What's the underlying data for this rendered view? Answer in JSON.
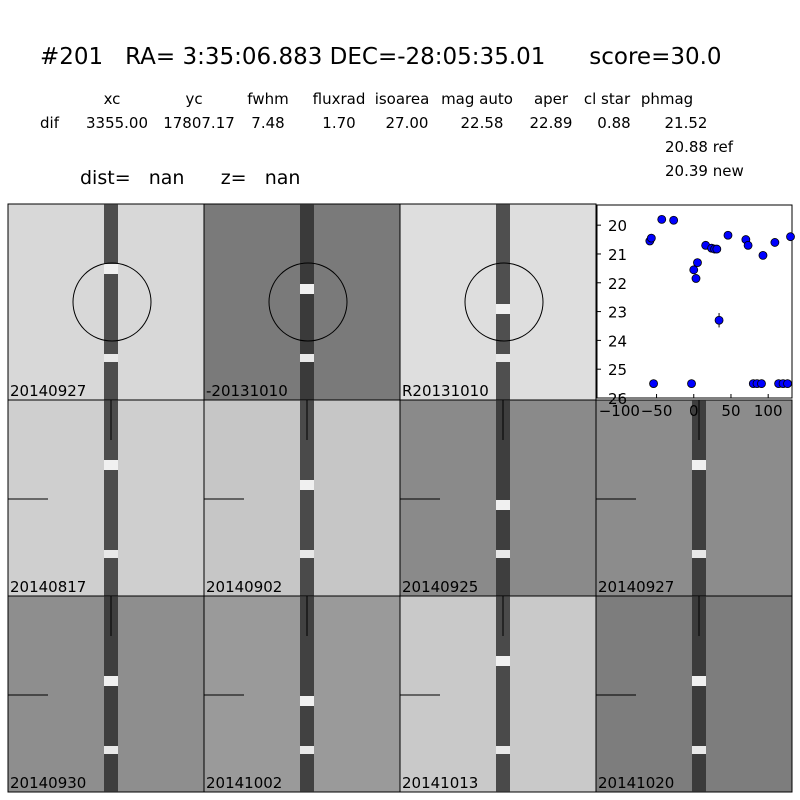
{
  "header": {
    "title": "#201   RA= 3:35:06.883 DEC=-28:05:35.01      score=30.0",
    "columns": [
      "xc",
      "yc",
      "fwhm",
      "fluxrad",
      "isoarea",
      "mag auto",
      "aper",
      "cl star",
      "phmag"
    ],
    "row_label": "dif",
    "row": [
      "3355.00",
      "17807.17",
      "7.48",
      "1.70",
      "27.00",
      "22.58",
      "22.89",
      "0.88",
      "21.52"
    ],
    "ref": "20.88 ref",
    "new": "20.39 new",
    "dist": "dist=   nan      z=   nan"
  },
  "panels": [
    {
      "label": "20140927"
    },
    {
      "label": "-20131010"
    },
    {
      "label": "R20131010"
    },
    {
      "label": "20140817"
    },
    {
      "label": "20140902"
    },
    {
      "label": "20140925"
    },
    {
      "label": "20140927",
      "color": "#ff0000"
    },
    {
      "label": "20140930"
    },
    {
      "label": "20141002"
    },
    {
      "label": "20141013"
    },
    {
      "label": "20141020"
    }
  ],
  "chart_data": {
    "type": "scatter",
    "color": "#0000ff",
    "x": [
      -59,
      -57,
      -43,
      -27,
      16,
      24,
      28,
      31,
      46,
      70,
      73,
      93,
      109,
      130,
      0,
      5,
      3,
      34,
      -54,
      -3,
      80,
      85,
      91,
      114,
      120,
      126
    ],
    "values": [
      20.55,
      20.45,
      19.8,
      19.83,
      20.7,
      20.8,
      20.83,
      20.83,
      20.35,
      20.5,
      20.7,
      21.05,
      20.6,
      20.4,
      21.55,
      21.3,
      21.85,
      23.3,
      25.5,
      25.5,
      25.5,
      25.5,
      25.5,
      25.5,
      25.5,
      25.5
    ],
    "errors": [
      null,
      null,
      null,
      null,
      null,
      null,
      null,
      null,
      null,
      null,
      null,
      null,
      null,
      null,
      null,
      null,
      null,
      0.25,
      null,
      null,
      null,
      null,
      null,
      null,
      null,
      null
    ],
    "xlim": [
      -130,
      132
    ],
    "ylim": [
      26,
      19.3
    ],
    "xticks": [
      {
        "value": -100,
        "label": "−100"
      },
      {
        "value": -50,
        "label": "−50"
      },
      0,
      50,
      100
    ],
    "yticks": [
      20,
      21,
      22,
      23,
      24,
      25,
      26
    ]
  }
}
